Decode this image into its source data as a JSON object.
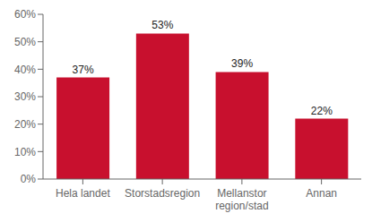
{
  "chart_data": {
    "type": "bar",
    "categories": [
      "Hela landet",
      "Storstadsregion",
      "Mellanstor\nregion/stad",
      "Annan"
    ],
    "values": [
      37,
      53,
      39,
      22
    ],
    "value_labels": [
      "37%",
      "53%",
      "39%",
      "22%"
    ],
    "color": "#c8102e",
    "ylim": [
      0,
      60
    ],
    "yticks": [
      {
        "value": 0,
        "label": "0%"
      },
      {
        "value": 10,
        "label": "10%"
      },
      {
        "value": 20,
        "label": "20%"
      },
      {
        "value": 30,
        "label": "30%"
      },
      {
        "value": 40,
        "label": "40%"
      },
      {
        "value": 50,
        "label": "50%"
      },
      {
        "value": 60,
        "label": "60%"
      }
    ],
    "grid": false,
    "data_labels": true
  }
}
